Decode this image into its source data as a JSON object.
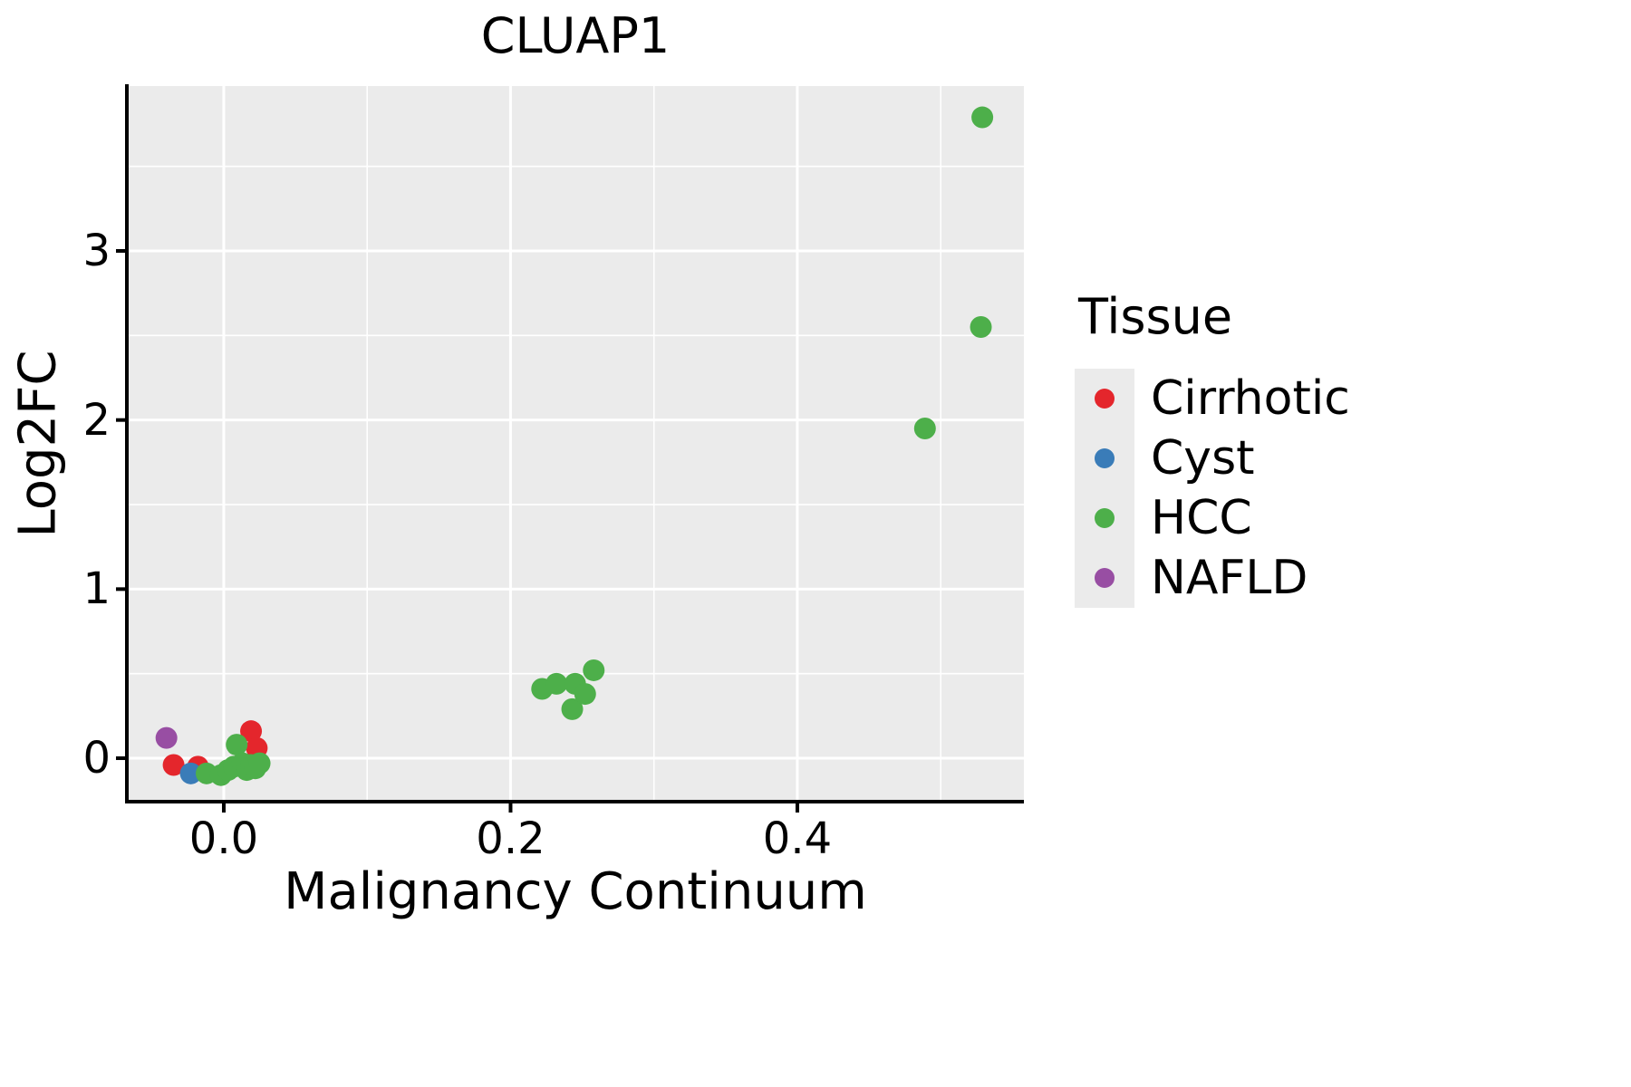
{
  "chart_data": {
    "type": "scatter",
    "title": "CLUAP1",
    "xlabel": "Malignancy Continuum",
    "ylabel": "Log2FC",
    "legend_title": "Tissue",
    "xlim": [
      -0.0676,
      0.558
    ],
    "ylim": [
      -0.257,
      3.975
    ],
    "x_ticks": [
      0.0,
      0.2,
      0.4
    ],
    "x_tick_labels": [
      "0.0",
      "0.2",
      "0.4"
    ],
    "y_ticks": [
      0,
      1,
      2,
      3
    ],
    "y_tick_labels": [
      "0",
      "1",
      "2",
      "3"
    ],
    "x_minor": [
      0.1,
      0.3,
      0.5
    ],
    "y_minor": [
      0.5,
      1.5,
      2.5,
      3.5
    ],
    "grid": true,
    "legend_position": "right",
    "panel_bg": "#EBEBEB",
    "grid_color": "#FFFFFF",
    "axis_color": "#000000",
    "point_radius": 12,
    "series": [
      {
        "name": "Cirrhotic",
        "color": "#E4262C",
        "points": [
          [
            -0.035,
            -0.04
          ],
          [
            -0.018,
            -0.05
          ],
          [
            0.019,
            0.16
          ],
          [
            0.023,
            0.06
          ]
        ]
      },
      {
        "name": "Cyst",
        "color": "#3A7CB8",
        "points": [
          [
            -0.023,
            -0.09
          ]
        ]
      },
      {
        "name": "HCC",
        "color": "#4DAF4A",
        "points": [
          [
            -0.012,
            -0.09
          ],
          [
            -0.002,
            -0.1
          ],
          [
            0.003,
            -0.07
          ],
          [
            0.007,
            -0.05
          ],
          [
            0.009,
            0.08
          ],
          [
            0.013,
            -0.03
          ],
          [
            0.016,
            -0.07
          ],
          [
            0.019,
            -0.04
          ],
          [
            0.022,
            -0.06
          ],
          [
            0.025,
            -0.03
          ],
          [
            0.222,
            0.41
          ],
          [
            0.232,
            0.44
          ],
          [
            0.245,
            0.44
          ],
          [
            0.243,
            0.29
          ],
          [
            0.252,
            0.38
          ],
          [
            0.258,
            0.52
          ],
          [
            0.489,
            1.95
          ],
          [
            0.528,
            2.55
          ],
          [
            0.529,
            3.79
          ]
        ]
      },
      {
        "name": "NAFLD",
        "color": "#984EA3",
        "points": [
          [
            -0.04,
            0.12
          ]
        ]
      }
    ]
  }
}
